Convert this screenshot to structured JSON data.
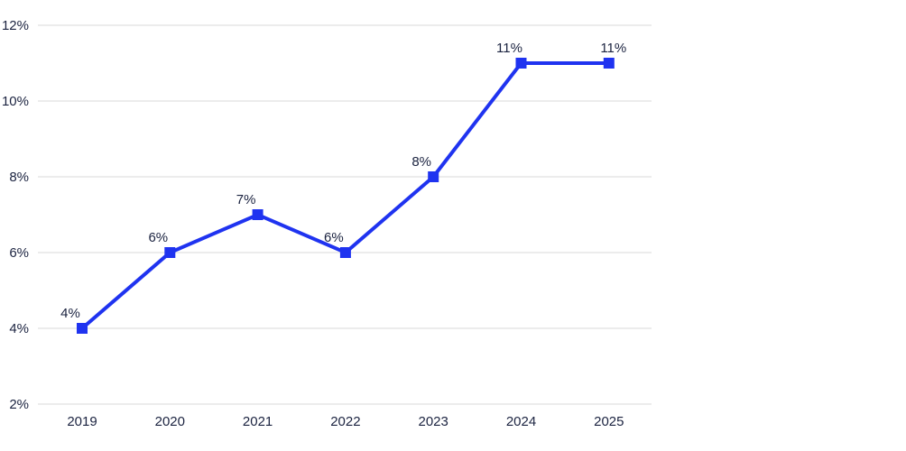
{
  "chart_data": {
    "type": "line",
    "categories": [
      "2019",
      "2020",
      "2021",
      "2022",
      "2023",
      "2024",
      "2025"
    ],
    "series": [
      {
        "values": [
          4,
          6,
          7,
          6,
          8,
          11,
          11
        ],
        "labels": [
          "4%",
          "6%",
          "7%",
          "6%",
          "8%",
          "11%",
          "11%"
        ],
        "color": "#1f33f0",
        "marker": "square"
      }
    ],
    "y_ticks": [
      "2%",
      "4%",
      "6%",
      "8%",
      "10%",
      "12%"
    ],
    "y_tick_values": [
      2,
      4,
      6,
      8,
      10,
      12
    ],
    "ylim": [
      2,
      12
    ],
    "title": "",
    "xlabel": "",
    "ylabel": "",
    "grid": "horizontal",
    "legend": "none",
    "colors": {
      "line": "#1f33f0",
      "grid": "#d9d9d9",
      "axis_text": "#1b2340"
    }
  }
}
